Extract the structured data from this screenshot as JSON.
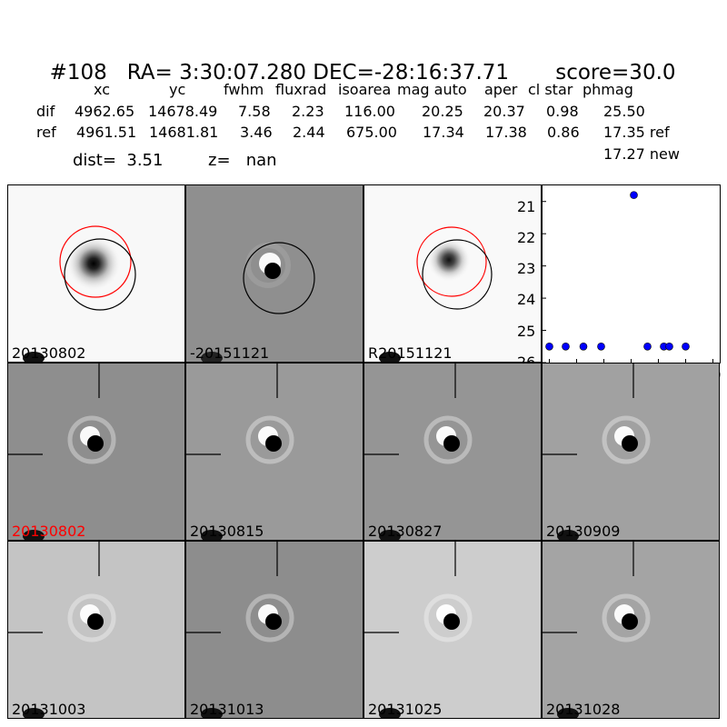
{
  "title": {
    "id": "#108",
    "coords": "RA= 3:30:07.280 DEC=-28:16:37.71",
    "score": "score=30.0"
  },
  "table": {
    "headers": [
      "xc",
      "yc",
      "fwhm",
      "fluxrad",
      "isoarea",
      "mag auto",
      "aper",
      "cl star",
      "phmag"
    ],
    "rows": [
      {
        "label": "dif",
        "values": [
          "4962.65",
          "14678.49",
          "7.58",
          "2.23",
          "116.00",
          "20.25",
          "20.37",
          "0.98",
          "25.50"
        ]
      },
      {
        "label": "ref",
        "values": [
          "4961.51",
          "14681.81",
          "3.46",
          "2.44",
          "675.00",
          "17.34",
          "17.38",
          "0.86",
          "17.35 ref"
        ]
      }
    ],
    "extra": "17.27 new"
  },
  "dist_line": {
    "dist": "dist=  3.51",
    "z": "z=   nan"
  },
  "top_panels": [
    {
      "label": "20130802",
      "bg": "#f8f8f8",
      "circles": [
        "red",
        "black"
      ]
    },
    {
      "label": "-20151121",
      "bg": "#8f8f8f",
      "circles": [
        "black"
      ]
    },
    {
      "label": "R20151121",
      "bg": "#f9f9f9",
      "circles": [
        "red",
        "black"
      ]
    }
  ],
  "stamps": [
    {
      "label": "20130802",
      "label_color": "#ff0000",
      "bg": "#8e8e8e"
    },
    {
      "label": "20130815",
      "label_color": "#000000",
      "bg": "#9a9a9a"
    },
    {
      "label": "20130827",
      "label_color": "#000000",
      "bg": "#959595"
    },
    {
      "label": "20130909",
      "label_color": "#000000",
      "bg": "#a1a1a1"
    },
    {
      "label": "20131003",
      "label_color": "#000000",
      "bg": "#c4c4c4"
    },
    {
      "label": "20131013",
      "label_color": "#000000",
      "bg": "#8d8d8d"
    },
    {
      "label": "20131025",
      "label_color": "#000000",
      "bg": "#cdcdcd"
    },
    {
      "label": "20131028",
      "label_color": "#000000",
      "bg": "#a4a4a4"
    }
  ],
  "chart_data": {
    "type": "scatter",
    "x": [
      0,
      12,
      25,
      38,
      62,
      72,
      84,
      88,
      100
    ],
    "y": [
      25.5,
      25.5,
      25.5,
      25.5,
      20.8,
      25.5,
      25.5,
      25.5,
      25.5
    ],
    "xlim": [
      -5,
      125
    ],
    "ylim": [
      26,
      20.5
    ],
    "xticks": [
      "0",
      "20",
      "40",
      "60",
      "80",
      "100",
      "120"
    ],
    "yticks": [
      "21",
      "22",
      "23",
      "24",
      "25",
      "26"
    ],
    "marker_color": "#0000ff"
  }
}
